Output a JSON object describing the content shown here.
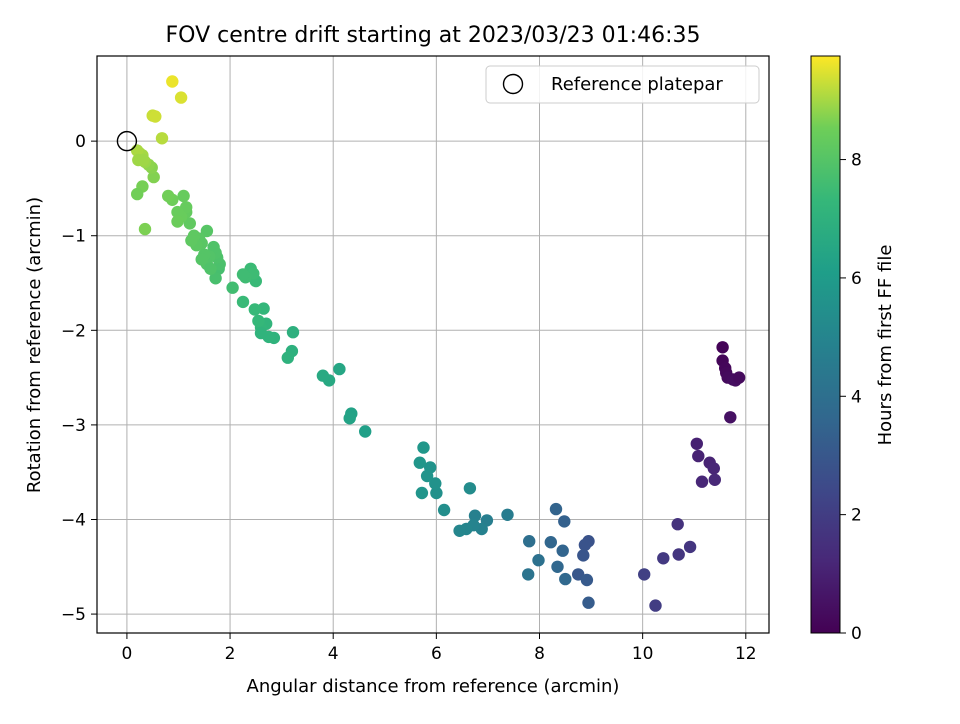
{
  "chart_data": {
    "type": "scatter",
    "title": "FOV centre drift starting at 2023/03/23 01:46:35",
    "xlabel": "Angular distance from reference (arcmin)",
    "ylabel": "Rotation from reference (arcmin)",
    "xlim": [
      -0.58,
      12.45
    ],
    "ylim": [
      -5.2,
      0.9
    ],
    "xticks": [
      0,
      2,
      4,
      6,
      8,
      10,
      12
    ],
    "yticks": [
      0,
      -1,
      -2,
      -3,
      -4,
      -5
    ],
    "grid": true,
    "legend": {
      "placement": "top-right",
      "entries": [
        "Reference platepar"
      ]
    },
    "reference": {
      "x": 0,
      "y": 0,
      "label": "Reference platepar"
    },
    "colorbar": {
      "label": "Hours from first FF file",
      "range": [
        0,
        9.75
      ],
      "ticks": [
        0,
        2,
        4,
        6,
        8
      ],
      "colormap": "viridis"
    },
    "points": [
      [
        11.55,
        -2.32,
        0.15
      ],
      [
        11.6,
        -2.4,
        0.2
      ],
      [
        11.62,
        -2.45,
        0.25
      ],
      [
        11.65,
        -2.5,
        0.3
      ],
      [
        11.75,
        -2.52,
        0.35
      ],
      [
        11.8,
        -2.53,
        0.4
      ],
      [
        11.87,
        -2.5,
        0.3
      ],
      [
        11.55,
        -2.18,
        0.1
      ],
      [
        11.7,
        -2.92,
        0.5
      ],
      [
        11.05,
        -3.2,
        1.0
      ],
      [
        11.08,
        -3.33,
        1.05
      ],
      [
        11.3,
        -3.4,
        1.1
      ],
      [
        11.38,
        -3.46,
        1.15
      ],
      [
        11.15,
        -3.6,
        1.2
      ],
      [
        11.4,
        -3.58,
        1.25
      ],
      [
        10.68,
        -4.05,
        1.6
      ],
      [
        10.92,
        -4.29,
        1.7
      ],
      [
        10.7,
        -4.37,
        1.75
      ],
      [
        10.4,
        -4.41,
        1.85
      ],
      [
        10.03,
        -4.58,
        2.1
      ],
      [
        10.25,
        -4.91,
        2.0
      ],
      [
        8.95,
        -4.23,
        2.8
      ],
      [
        8.88,
        -4.27,
        2.85
      ],
      [
        8.85,
        -4.38,
        2.9
      ],
      [
        8.75,
        -4.58,
        3.0
      ],
      [
        8.92,
        -4.64,
        3.1
      ],
      [
        8.95,
        -4.88,
        3.2
      ],
      [
        8.48,
        -4.02,
        3.4
      ],
      [
        8.32,
        -3.89,
        3.5
      ],
      [
        8.45,
        -4.33,
        3.55
      ],
      [
        8.22,
        -4.24,
        3.6
      ],
      [
        8.35,
        -4.5,
        3.65
      ],
      [
        8.5,
        -4.63,
        3.7
      ],
      [
        7.8,
        -4.23,
        4.0
      ],
      [
        7.98,
        -4.43,
        4.1
      ],
      [
        7.78,
        -4.58,
        4.2
      ],
      [
        7.38,
        -3.95,
        4.6
      ],
      [
        6.98,
        -4.01,
        4.7
      ],
      [
        6.75,
        -3.96,
        4.8
      ],
      [
        6.88,
        -4.1,
        4.85
      ],
      [
        6.72,
        -4.06,
        4.9
      ],
      [
        6.58,
        -4.1,
        5.0
      ],
      [
        6.45,
        -4.12,
        5.05
      ],
      [
        6.65,
        -3.67,
        5.3
      ],
      [
        6.15,
        -3.9,
        5.4
      ],
      [
        6.0,
        -3.72,
        5.5
      ],
      [
        5.98,
        -3.62,
        5.55
      ],
      [
        5.88,
        -3.45,
        5.6
      ],
      [
        5.82,
        -3.54,
        5.65
      ],
      [
        5.72,
        -3.72,
        5.7
      ],
      [
        5.68,
        -3.4,
        5.75
      ],
      [
        5.75,
        -3.24,
        5.8
      ],
      [
        4.62,
        -3.07,
        6.2
      ],
      [
        4.35,
        -2.88,
        6.3
      ],
      [
        4.32,
        -2.93,
        6.35
      ],
      [
        4.12,
        -2.41,
        6.5
      ],
      [
        3.92,
        -2.53,
        6.6
      ],
      [
        3.8,
        -2.48,
        6.65
      ],
      [
        3.22,
        -2.02,
        6.9
      ],
      [
        3.2,
        -2.22,
        6.95
      ],
      [
        3.12,
        -2.29,
        7.0
      ],
      [
        2.85,
        -2.08,
        7.05
      ],
      [
        2.75,
        -2.07,
        7.1
      ],
      [
        2.7,
        -1.93,
        7.15
      ],
      [
        2.6,
        -1.97,
        7.2
      ],
      [
        2.65,
        -1.77,
        7.25
      ],
      [
        2.55,
        -1.9,
        7.3
      ],
      [
        2.6,
        -2.03,
        7.1
      ],
      [
        2.48,
        -1.78,
        7.35
      ],
      [
        2.5,
        -1.48,
        7.4
      ],
      [
        2.4,
        -1.35,
        7.45
      ],
      [
        2.45,
        -1.4,
        7.5
      ],
      [
        2.3,
        -1.44,
        7.55
      ],
      [
        2.25,
        -1.41,
        7.55
      ],
      [
        2.25,
        -1.7,
        7.4
      ],
      [
        2.05,
        -1.55,
        7.6
      ],
      [
        1.78,
        -1.35,
        7.7
      ],
      [
        1.72,
        -1.45,
        7.75
      ],
      [
        1.8,
        -1.3,
        7.8
      ],
      [
        1.75,
        -1.23,
        7.85
      ],
      [
        1.72,
        -1.18,
        7.9
      ],
      [
        1.68,
        -1.12,
        7.9
      ],
      [
        1.6,
        -1.22,
        7.95
      ],
      [
        1.55,
        -1.3,
        7.95
      ],
      [
        1.62,
        -1.35,
        7.9
      ],
      [
        1.5,
        -1.2,
        8.0
      ],
      [
        1.45,
        -1.25,
        8.0
      ],
      [
        1.55,
        -0.95,
        8.05
      ],
      [
        1.45,
        -1.08,
        8.1
      ],
      [
        1.4,
        -1.03,
        8.1
      ],
      [
        1.35,
        -1.1,
        8.15
      ],
      [
        1.3,
        -1.0,
        8.2
      ],
      [
        1.25,
        -1.05,
        8.2
      ],
      [
        1.22,
        -0.87,
        8.25
      ],
      [
        1.15,
        -0.75,
        8.3
      ],
      [
        1.15,
        -0.7,
        8.35
      ],
      [
        1.1,
        -0.58,
        8.35
      ],
      [
        1.05,
        -0.8,
        8.4
      ],
      [
        0.98,
        -0.75,
        8.4
      ],
      [
        0.98,
        -0.85,
        8.45
      ],
      [
        0.88,
        -0.62,
        8.5
      ],
      [
        0.8,
        -0.58,
        8.55
      ],
      [
        0.52,
        -0.38,
        8.7
      ],
      [
        0.48,
        -0.28,
        8.75
      ],
      [
        0.42,
        -0.25,
        8.8
      ],
      [
        0.3,
        -0.48,
        8.6
      ],
      [
        0.2,
        -0.56,
        8.55
      ],
      [
        0.35,
        -0.93,
        8.65
      ],
      [
        0.35,
        -0.22,
        8.9
      ],
      [
        0.25,
        -0.13,
        9.0
      ],
      [
        0.3,
        -0.15,
        9.0
      ],
      [
        0.2,
        -0.1,
        9.05
      ],
      [
        0.22,
        -0.2,
        8.95
      ],
      [
        0.32,
        -0.2,
        8.95
      ],
      [
        0.68,
        0.03,
        9.15
      ],
      [
        0.5,
        0.27,
        9.3
      ],
      [
        0.55,
        0.26,
        9.35
      ],
      [
        1.05,
        0.46,
        9.45
      ],
      [
        0.88,
        0.63,
        9.6
      ]
    ]
  }
}
